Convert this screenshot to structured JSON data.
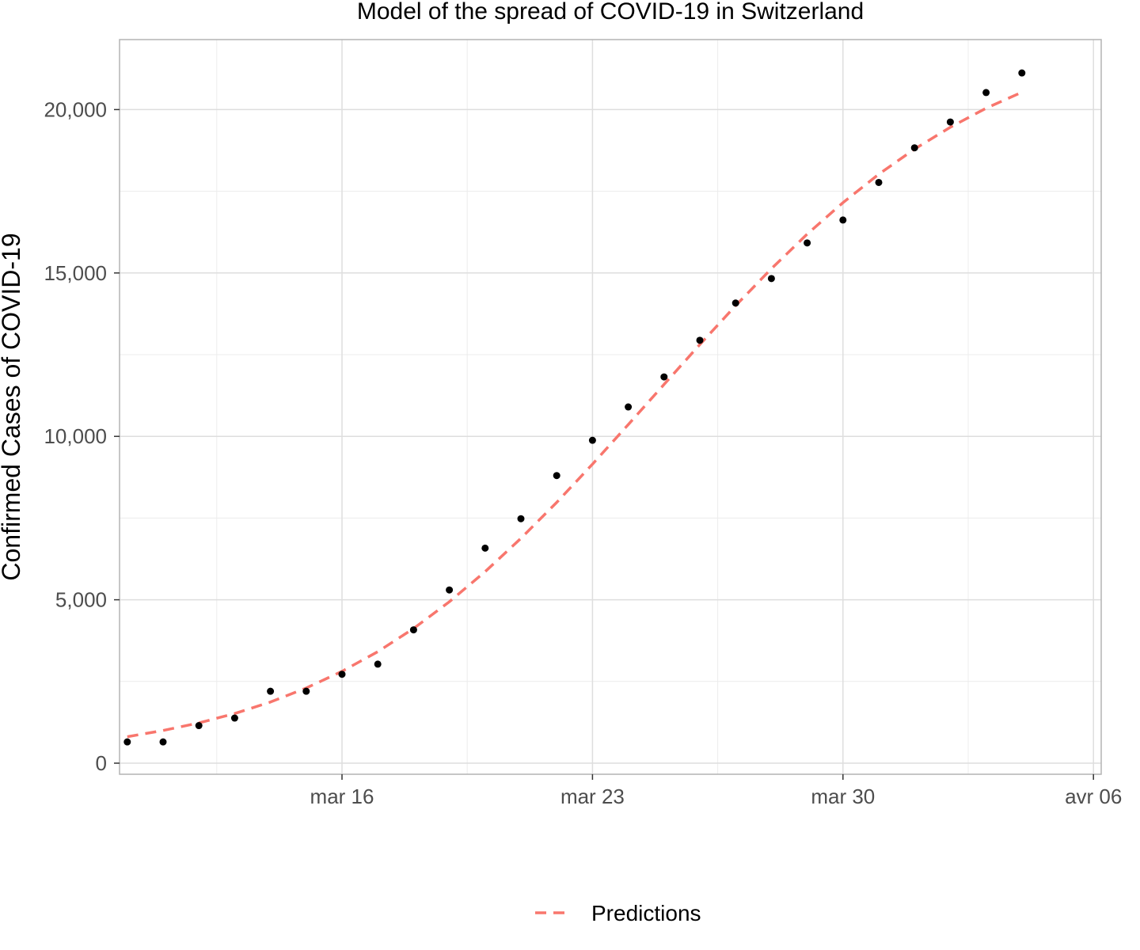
{
  "chart_data": {
    "type": "scatter",
    "title": "Model of the spread of COVID-19 in Switzerland",
    "xlabel": "",
    "ylabel": "Confirmed Cases of COVID-19",
    "x_type": "date",
    "xlim": [
      "2020-03-09",
      "2020-04-06"
    ],
    "ylim": [
      0,
      22000
    ],
    "x_ticks": [
      {
        "date": "2020-03-16",
        "label": "mar 16"
      },
      {
        "date": "2020-03-23",
        "label": "mar 23"
      },
      {
        "date": "2020-03-30",
        "label": "mar 30"
      },
      {
        "date": "2020-04-06",
        "label": "avr 06"
      }
    ],
    "y_ticks": [
      {
        "value": 0,
        "label": "0"
      },
      {
        "value": 5000,
        "label": "5,000"
      },
      {
        "value": 10000,
        "label": "10,000"
      },
      {
        "value": 15000,
        "label": "15,000"
      },
      {
        "value": 20000,
        "label": "20,000"
      }
    ],
    "grid": true,
    "legend_position": "bottom",
    "series": [
      {
        "kind": "points",
        "color": "#000000",
        "points": [
          {
            "date": "2020-03-10",
            "value": 650
          },
          {
            "date": "2020-03-11",
            "value": 650
          },
          {
            "date": "2020-03-12",
            "value": 1150
          },
          {
            "date": "2020-03-13",
            "value": 1380
          },
          {
            "date": "2020-03-14",
            "value": 2200
          },
          {
            "date": "2020-03-15",
            "value": 2200
          },
          {
            "date": "2020-03-16",
            "value": 2720
          },
          {
            "date": "2020-03-17",
            "value": 3030
          },
          {
            "date": "2020-03-18",
            "value": 4080
          },
          {
            "date": "2020-03-19",
            "value": 5300
          },
          {
            "date": "2020-03-20",
            "value": 6580
          },
          {
            "date": "2020-03-21",
            "value": 7480
          },
          {
            "date": "2020-03-22",
            "value": 8800
          },
          {
            "date": "2020-03-23",
            "value": 9880
          },
          {
            "date": "2020-03-24",
            "value": 10900
          },
          {
            "date": "2020-03-25",
            "value": 11820
          },
          {
            "date": "2020-03-26",
            "value": 12940
          },
          {
            "date": "2020-03-27",
            "value": 14080
          },
          {
            "date": "2020-03-28",
            "value": 14830
          },
          {
            "date": "2020-03-29",
            "value": 15920
          },
          {
            "date": "2020-03-30",
            "value": 16620
          },
          {
            "date": "2020-03-31",
            "value": 17770
          },
          {
            "date": "2020-04-01",
            "value": 18830
          },
          {
            "date": "2020-04-02",
            "value": 19620
          },
          {
            "date": "2020-04-03",
            "value": 20520
          },
          {
            "date": "2020-04-04",
            "value": 21120
          }
        ]
      },
      {
        "name": "Predictions",
        "kind": "line",
        "color": "#F8766D",
        "dashed": true,
        "points": [
          {
            "date": "2020-03-10",
            "value": 810
          },
          {
            "date": "2020-03-11",
            "value": 1000
          },
          {
            "date": "2020-03-12",
            "value": 1230
          },
          {
            "date": "2020-03-13",
            "value": 1520
          },
          {
            "date": "2020-03-14",
            "value": 1870
          },
          {
            "date": "2020-03-15",
            "value": 2300
          },
          {
            "date": "2020-03-16",
            "value": 2810
          },
          {
            "date": "2020-03-17",
            "value": 3410
          },
          {
            "date": "2020-03-18",
            "value": 4120
          },
          {
            "date": "2020-03-19",
            "value": 4940
          },
          {
            "date": "2020-03-20",
            "value": 5860
          },
          {
            "date": "2020-03-21",
            "value": 6880
          },
          {
            "date": "2020-03-22",
            "value": 7980
          },
          {
            "date": "2020-03-23",
            "value": 9150
          },
          {
            "date": "2020-03-24",
            "value": 10360
          },
          {
            "date": "2020-03-25",
            "value": 11590
          },
          {
            "date": "2020-03-26",
            "value": 12810
          },
          {
            "date": "2020-03-27",
            "value": 14000
          },
          {
            "date": "2020-03-28",
            "value": 15130
          },
          {
            "date": "2020-03-29",
            "value": 16190
          },
          {
            "date": "2020-03-30",
            "value": 17150
          },
          {
            "date": "2020-03-31",
            "value": 18020
          },
          {
            "date": "2020-04-01",
            "value": 18790
          },
          {
            "date": "2020-04-02",
            "value": 19460
          },
          {
            "date": "2020-04-03",
            "value": 20040
          },
          {
            "date": "2020-04-04",
            "value": 20530
          }
        ]
      }
    ]
  }
}
